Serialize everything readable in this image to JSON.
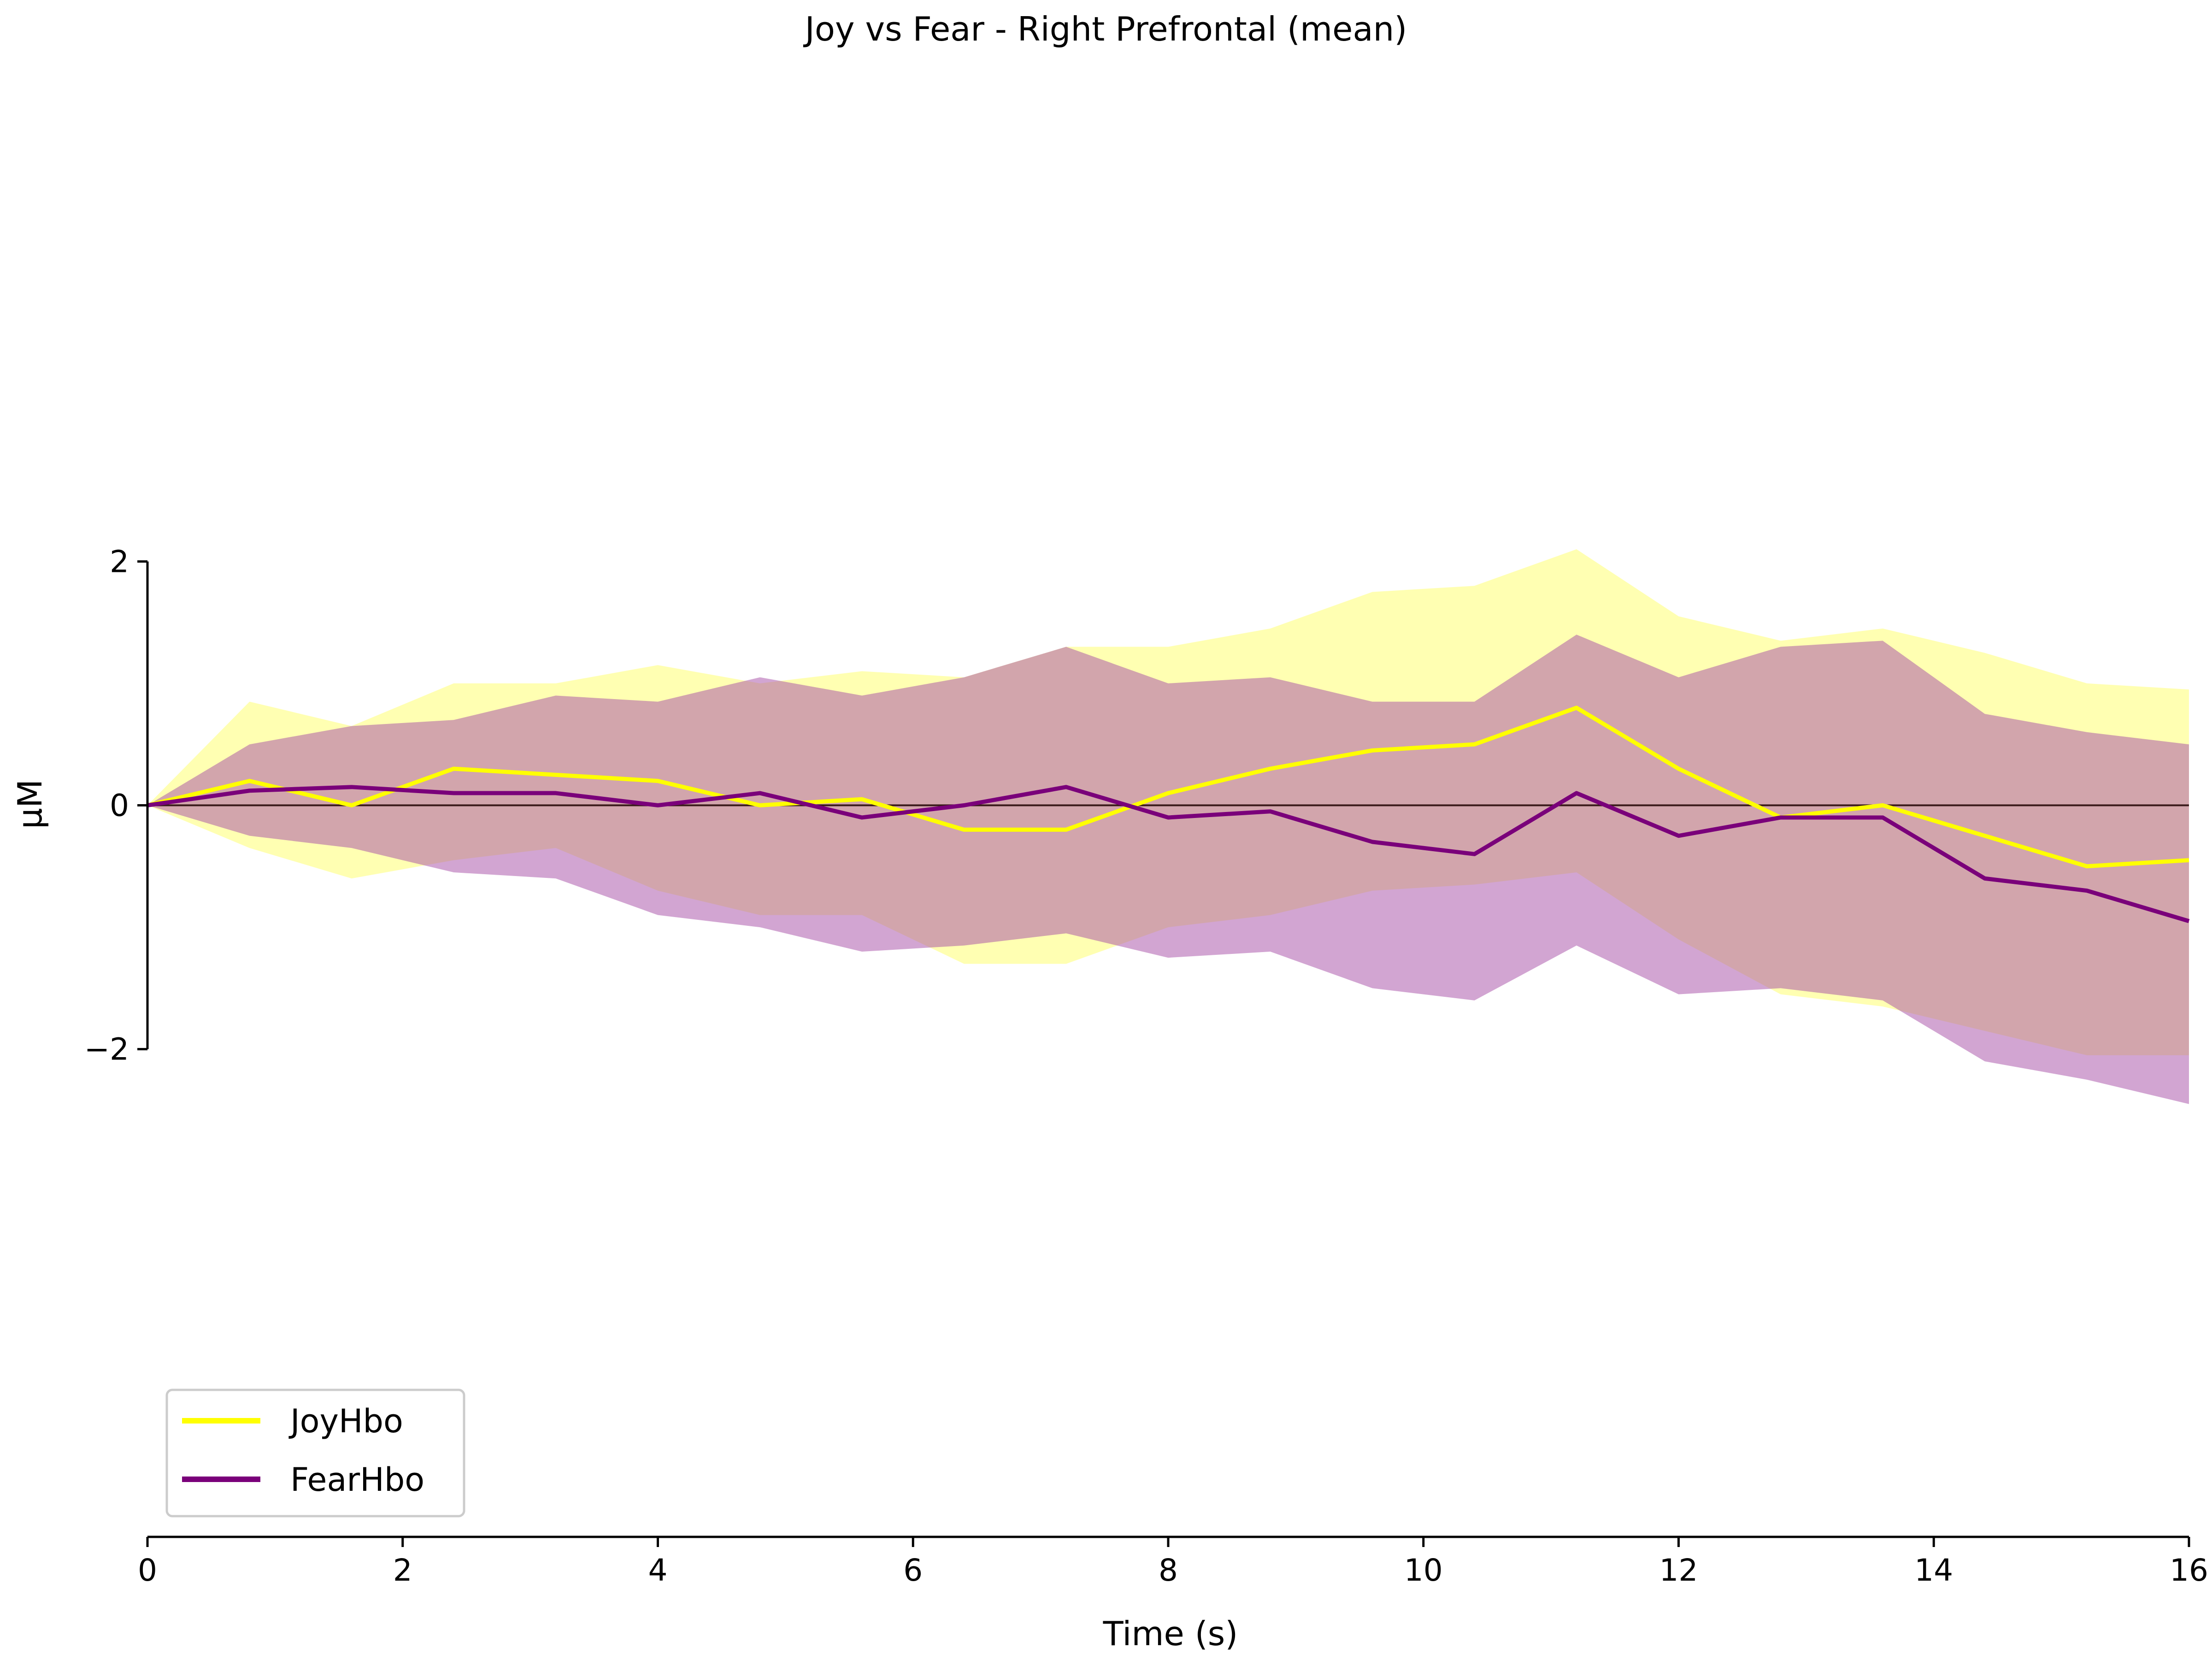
{
  "chart_data": {
    "type": "line",
    "title": "Joy vs Fear - Right Prefrontal (mean)",
    "xlabel": "Time (s)",
    "ylabel": "µM",
    "xlim": [
      0,
      16
    ],
    "ylim": [
      -6,
      6
    ],
    "xticks": [
      0,
      2,
      4,
      6,
      8,
      10,
      12,
      14,
      16
    ],
    "xtick_labels": [
      "0",
      "2",
      "4",
      "6",
      "8",
      "10",
      "12",
      "14",
      "16"
    ],
    "yticks": [
      -2,
      0,
      2
    ],
    "ytick_labels": [
      "−2",
      "0",
      "2"
    ],
    "zero_line": true,
    "grid": false,
    "legend_position": "lower-left",
    "x": [
      0,
      0.8,
      1.6,
      2.4,
      3.2,
      4.0,
      4.8,
      5.6,
      6.4,
      7.2,
      8.0,
      8.8,
      9.6,
      10.4,
      11.2,
      12.0,
      12.8,
      13.6,
      14.4,
      15.2,
      16.0
    ],
    "series": [
      {
        "name": "JoyHbo",
        "color": "#ffff00",
        "band_color": "#ffff66",
        "values": [
          0.0,
          0.2,
          0.0,
          0.3,
          0.25,
          0.2,
          0.0,
          0.05,
          -0.2,
          -0.2,
          0.1,
          0.3,
          0.45,
          0.5,
          0.8,
          0.3,
          -0.1,
          0.0,
          -0.25,
          -0.5,
          -0.45
        ],
        "upper": [
          0.0,
          0.85,
          0.65,
          1.0,
          1.0,
          1.15,
          1.0,
          1.1,
          1.05,
          1.3,
          1.3,
          1.45,
          1.75,
          1.8,
          2.1,
          1.55,
          1.35,
          1.45,
          1.25,
          1.0,
          0.95
        ],
        "lower": [
          0.0,
          -0.35,
          -0.6,
          -0.45,
          -0.35,
          -0.7,
          -0.9,
          -0.9,
          -1.3,
          -1.3,
          -1.0,
          -0.9,
          -0.7,
          -0.65,
          -0.55,
          -1.1,
          -1.55,
          -1.65,
          -1.85,
          -2.05,
          -2.05
        ]
      },
      {
        "name": "FearHbo",
        "color": "#7a007a",
        "band_color": "#a64ca6",
        "values": [
          0.0,
          0.12,
          0.15,
          0.1,
          0.1,
          0.0,
          0.1,
          -0.1,
          0.0,
          0.15,
          -0.1,
          -0.05,
          -0.3,
          -0.4,
          0.1,
          -0.25,
          -0.1,
          -0.1,
          -0.6,
          -0.7,
          -0.95
        ],
        "upper": [
          0.0,
          0.5,
          0.65,
          0.7,
          0.9,
          0.85,
          1.05,
          0.9,
          1.05,
          1.3,
          1.0,
          1.05,
          0.85,
          0.85,
          1.4,
          1.05,
          1.3,
          1.35,
          0.75,
          0.6,
          0.5
        ],
        "lower": [
          0.0,
          -0.25,
          -0.35,
          -0.55,
          -0.6,
          -0.9,
          -1.0,
          -1.2,
          -1.15,
          -1.05,
          -1.25,
          -1.2,
          -1.5,
          -1.6,
          -1.15,
          -1.55,
          -1.5,
          -1.6,
          -2.1,
          -2.25,
          -2.45
        ]
      }
    ]
  }
}
